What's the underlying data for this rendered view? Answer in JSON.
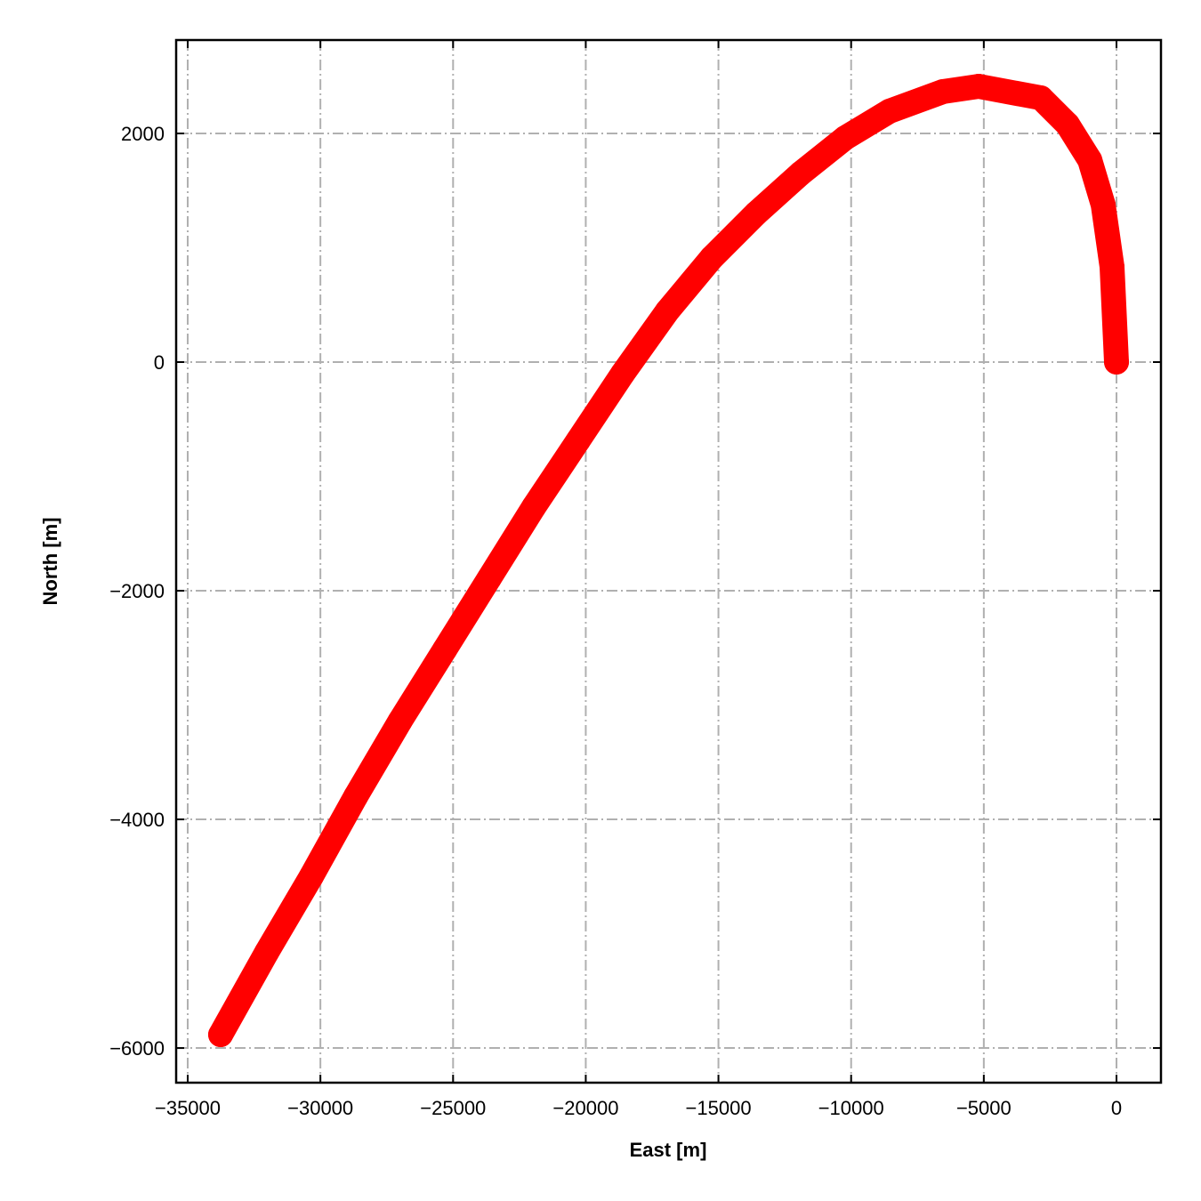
{
  "chart_data": {
    "type": "line",
    "x_label": "East [m]",
    "y_label": "North [m]",
    "series": [
      {
        "color": "#ff0000",
        "x": [
          0,
          -168,
          -503,
          -1006,
          -1844,
          -2850,
          -5197,
          -6538,
          -8550,
          -10226,
          -11902,
          -13579,
          -15255,
          -16931,
          -18607,
          -20283,
          -21960,
          -23636,
          -25312,
          -26988,
          -28665,
          -30341,
          -32017,
          -33760
        ],
        "values": [
          0,
          833,
          1377,
          1767,
          2078,
          2311,
          2412,
          2366,
          2195,
          1961,
          1650,
          1300,
          911,
          444,
          -101,
          -685,
          -1268,
          -1891,
          -2514,
          -3136,
          -3798,
          -4498,
          -5160,
          -5883
        ]
      }
    ],
    "xlim": [
      -35436,
      1676
    ],
    "ylim": [
      -6303,
      2817
    ],
    "xticks": [
      {
        "value": -35000,
        "label": "−35000"
      },
      {
        "value": -30000,
        "label": "−30000"
      },
      {
        "value": -25000,
        "label": "−25000"
      },
      {
        "value": -20000,
        "label": "−20000"
      },
      {
        "value": -15000,
        "label": "−15000"
      },
      {
        "value": -10000,
        "label": "−10000"
      },
      {
        "value": -5000,
        "label": "−5000"
      },
      0
    ],
    "yticks": [
      {
        "value": -6000,
        "label": "−6000"
      },
      {
        "value": -4000,
        "label": "−4000"
      },
      {
        "value": -2000,
        "label": "−2000"
      },
      0,
      2000
    ],
    "grid": true
  }
}
